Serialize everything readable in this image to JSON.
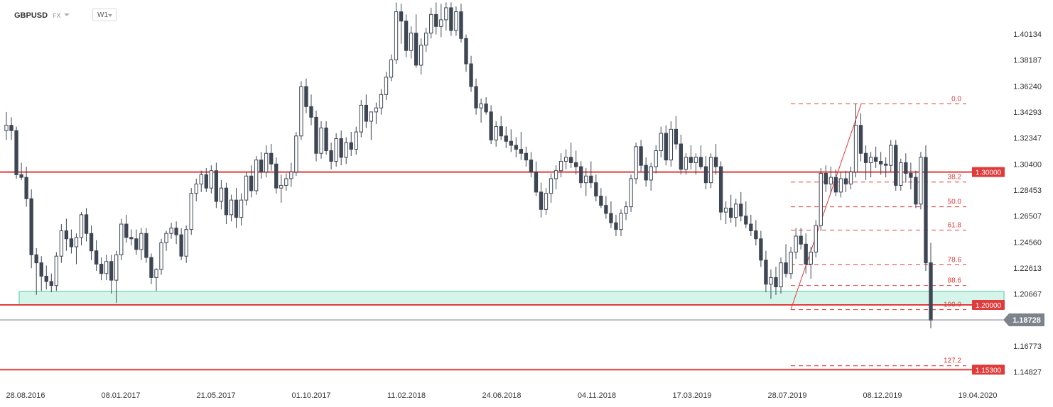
{
  "header": {
    "symbol": "GBPUSD",
    "market": "FX",
    "timeframe": "W1"
  },
  "chart_data": {
    "type": "candlestick",
    "symbol": "GBPUSD",
    "timeframe": "W1",
    "ylim": [
      1.1385,
      1.4215
    ],
    "y_ticks": [
      "1.40134",
      "1.38187",
      "1.36240",
      "1.34293",
      "1.32347",
      "1.30400",
      "1.28453",
      "1.26507",
      "1.24560",
      "1.22613",
      "1.20667",
      "1.18720",
      "1.16773",
      "1.14827"
    ],
    "x_ticks": [
      "28.08.2016",
      "08.01.2017",
      "21.05.2017",
      "01.10.2017",
      "11.02.2018",
      "24.06.2018",
      "04.11.2018",
      "17.03.2019",
      "28.07.2019",
      "08.12.2019",
      "19.04.2020"
    ],
    "current_price": "1.18728",
    "levels": [
      {
        "label": "1.30000",
        "value": 1.298,
        "color": "#e03b3b"
      },
      {
        "label": "1.20000",
        "value": 1.1985,
        "color": "#e03b3b"
      },
      {
        "label": "1.15300",
        "value": 1.15,
        "color": "#e03b3b"
      }
    ],
    "support_zone": {
      "from": 1.1985,
      "to": 1.2085,
      "color": "#7fd9b8"
    },
    "fibonacci": {
      "low": 1.195,
      "high": 1.349,
      "levels": [
        {
          "label": "0.0",
          "value": 1.349
        },
        {
          "label": "38.2",
          "value": 1.2905
        },
        {
          "label": "50.0",
          "value": 1.272
        },
        {
          "label": "61.8",
          "value": 1.2545
        },
        {
          "label": "78.6",
          "value": 1.2285
        },
        {
          "label": "88.6",
          "value": 1.213
        },
        {
          "label": "100.0",
          "value": 1.195
        },
        {
          "label": "127.2",
          "value": 1.153
        }
      ]
    },
    "candles": [
      [
        1.329,
        1.343,
        1.322,
        1.333
      ],
      [
        1.333,
        1.339,
        1.322,
        1.329
      ],
      [
        1.329,
        1.332,
        1.293,
        1.296
      ],
      [
        1.296,
        1.305,
        1.292,
        1.294
      ],
      [
        1.294,
        1.302,
        1.272,
        1.278
      ],
      [
        1.278,
        1.285,
        1.226,
        1.236
      ],
      [
        1.236,
        1.241,
        1.206,
        1.23
      ],
      [
        1.23,
        1.235,
        1.209,
        1.22
      ],
      [
        1.22,
        1.228,
        1.21,
        1.216
      ],
      [
        1.216,
        1.222,
        1.208,
        1.213
      ],
      [
        1.213,
        1.238,
        1.209,
        1.235
      ],
      [
        1.235,
        1.259,
        1.23,
        1.254
      ],
      [
        1.254,
        1.263,
        1.239,
        1.248
      ],
      [
        1.248,
        1.255,
        1.237,
        1.242
      ],
      [
        1.242,
        1.252,
        1.229,
        1.249
      ],
      [
        1.249,
        1.268,
        1.243,
        1.266
      ],
      [
        1.266,
        1.271,
        1.246,
        1.252
      ],
      [
        1.252,
        1.258,
        1.232,
        1.239
      ],
      [
        1.239,
        1.247,
        1.224,
        1.229
      ],
      [
        1.229,
        1.234,
        1.217,
        1.222
      ],
      [
        1.222,
        1.236,
        1.217,
        1.231
      ],
      [
        1.231,
        1.236,
        1.207,
        1.217
      ],
      [
        1.217,
        1.239,
        1.2,
        1.236
      ],
      [
        1.236,
        1.263,
        1.232,
        1.259
      ],
      [
        1.259,
        1.266,
        1.245,
        1.249
      ],
      [
        1.249,
        1.255,
        1.243,
        1.248
      ],
      [
        1.248,
        1.255,
        1.236,
        1.24
      ],
      [
        1.24,
        1.256,
        1.232,
        1.252
      ],
      [
        1.252,
        1.256,
        1.23,
        1.234
      ],
      [
        1.234,
        1.237,
        1.214,
        1.219
      ],
      [
        1.219,
        1.226,
        1.209,
        1.225
      ],
      [
        1.225,
        1.248,
        1.221,
        1.245
      ],
      [
        1.245,
        1.254,
        1.239,
        1.252
      ],
      [
        1.252,
        1.26,
        1.248,
        1.256
      ],
      [
        1.256,
        1.261,
        1.244,
        1.251
      ],
      [
        1.251,
        1.256,
        1.232,
        1.235
      ],
      [
        1.235,
        1.258,
        1.23,
        1.255
      ],
      [
        1.255,
        1.286,
        1.251,
        1.282
      ],
      [
        1.282,
        1.293,
        1.276,
        1.289
      ],
      [
        1.289,
        1.299,
        1.283,
        1.296
      ],
      [
        1.296,
        1.301,
        1.283,
        1.286
      ],
      [
        1.286,
        1.303,
        1.282,
        1.299
      ],
      [
        1.299,
        1.305,
        1.271,
        1.276
      ],
      [
        1.276,
        1.292,
        1.27,
        1.286
      ],
      [
        1.286,
        1.29,
        1.259,
        1.266
      ],
      [
        1.266,
        1.281,
        1.261,
        1.277
      ],
      [
        1.277,
        1.286,
        1.256,
        1.264
      ],
      [
        1.264,
        1.282,
        1.258,
        1.277
      ],
      [
        1.277,
        1.298,
        1.273,
        1.295
      ],
      [
        1.295,
        1.303,
        1.279,
        1.284
      ],
      [
        1.284,
        1.31,
        1.281,
        1.307
      ],
      [
        1.307,
        1.313,
        1.293,
        1.298
      ],
      [
        1.298,
        1.318,
        1.294,
        1.312
      ],
      [
        1.312,
        1.319,
        1.299,
        1.304
      ],
      [
        1.304,
        1.309,
        1.282,
        1.286
      ],
      [
        1.286,
        1.296,
        1.275,
        1.288
      ],
      [
        1.288,
        1.297,
        1.284,
        1.293
      ],
      [
        1.293,
        1.305,
        1.287,
        1.298
      ],
      [
        1.298,
        1.328,
        1.295,
        1.325
      ],
      [
        1.325,
        1.366,
        1.322,
        1.362
      ],
      [
        1.362,
        1.368,
        1.342,
        1.347
      ],
      [
        1.347,
        1.356,
        1.333,
        1.339
      ],
      [
        1.339,
        1.344,
        1.306,
        1.312
      ],
      [
        1.312,
        1.336,
        1.308,
        1.331
      ],
      [
        1.331,
        1.336,
        1.311,
        1.314
      ],
      [
        1.314,
        1.32,
        1.3,
        1.306
      ],
      [
        1.306,
        1.327,
        1.302,
        1.323
      ],
      [
        1.323,
        1.329,
        1.303,
        1.309
      ],
      [
        1.309,
        1.324,
        1.304,
        1.32
      ],
      [
        1.32,
        1.328,
        1.31,
        1.315
      ],
      [
        1.315,
        1.332,
        1.311,
        1.328
      ],
      [
        1.328,
        1.352,
        1.324,
        1.348
      ],
      [
        1.348,
        1.356,
        1.331,
        1.336
      ],
      [
        1.336,
        1.342,
        1.322,
        1.343
      ],
      [
        1.343,
        1.35,
        1.334,
        1.346
      ],
      [
        1.346,
        1.36,
        1.341,
        1.356
      ],
      [
        1.356,
        1.373,
        1.352,
        1.369
      ],
      [
        1.369,
        1.386,
        1.366,
        1.382
      ],
      [
        1.382,
        1.425,
        1.379,
        1.418
      ],
      [
        1.418,
        1.424,
        1.394,
        1.411
      ],
      [
        1.411,
        1.416,
        1.384,
        1.389
      ],
      [
        1.389,
        1.407,
        1.383,
        1.402
      ],
      [
        1.402,
        1.416,
        1.376,
        1.378
      ],
      [
        1.378,
        1.398,
        1.371,
        1.393
      ],
      [
        1.393,
        1.406,
        1.388,
        1.402
      ],
      [
        1.402,
        1.421,
        1.398,
        1.416
      ],
      [
        1.416,
        1.425,
        1.401,
        1.407
      ],
      [
        1.407,
        1.424,
        1.399,
        1.412
      ],
      [
        1.412,
        1.425,
        1.404,
        1.421
      ],
      [
        1.421,
        1.425,
        1.4,
        1.404
      ],
      [
        1.404,
        1.422,
        1.4,
        1.418
      ],
      [
        1.418,
        1.424,
        1.395,
        1.398
      ],
      [
        1.398,
        1.401,
        1.373,
        1.379
      ],
      [
        1.379,
        1.385,
        1.358,
        1.362
      ],
      [
        1.362,
        1.368,
        1.341,
        1.346
      ],
      [
        1.346,
        1.353,
        1.335,
        1.349
      ],
      [
        1.349,
        1.354,
        1.341,
        1.343
      ],
      [
        1.343,
        1.348,
        1.319,
        1.322
      ],
      [
        1.322,
        1.336,
        1.317,
        1.332
      ],
      [
        1.332,
        1.34,
        1.322,
        1.325
      ],
      [
        1.325,
        1.332,
        1.316,
        1.321
      ],
      [
        1.321,
        1.33,
        1.313,
        1.318
      ],
      [
        1.318,
        1.324,
        1.309,
        1.315
      ],
      [
        1.315,
        1.328,
        1.307,
        1.312
      ],
      [
        1.312,
        1.317,
        1.302,
        1.307
      ],
      [
        1.307,
        1.313,
        1.294,
        1.298
      ],
      [
        1.298,
        1.306,
        1.28,
        1.283
      ],
      [
        1.283,
        1.29,
        1.264,
        1.27
      ],
      [
        1.27,
        1.286,
        1.266,
        1.282
      ],
      [
        1.282,
        1.297,
        1.275,
        1.293
      ],
      [
        1.293,
        1.303,
        1.285,
        1.299
      ],
      [
        1.299,
        1.312,
        1.294,
        1.306
      ],
      [
        1.306,
        1.315,
        1.3,
        1.309
      ],
      [
        1.309,
        1.32,
        1.301,
        1.305
      ],
      [
        1.305,
        1.314,
        1.296,
        1.302
      ],
      [
        1.302,
        1.306,
        1.286,
        1.29
      ],
      [
        1.29,
        1.301,
        1.28,
        1.295
      ],
      [
        1.295,
        1.306,
        1.286,
        1.29
      ],
      [
        1.29,
        1.296,
        1.276,
        1.28
      ],
      [
        1.28,
        1.286,
        1.271,
        1.273
      ],
      [
        1.273,
        1.28,
        1.263,
        1.267
      ],
      [
        1.267,
        1.276,
        1.256,
        1.26
      ],
      [
        1.26,
        1.266,
        1.25,
        1.255
      ],
      [
        1.255,
        1.27,
        1.25,
        1.267
      ],
      [
        1.267,
        1.276,
        1.262,
        1.272
      ],
      [
        1.272,
        1.296,
        1.268,
        1.293
      ],
      [
        1.293,
        1.32,
        1.289,
        1.317
      ],
      [
        1.317,
        1.322,
        1.298,
        1.303
      ],
      [
        1.303,
        1.309,
        1.287,
        1.292
      ],
      [
        1.292,
        1.305,
        1.284,
        1.302
      ],
      [
        1.302,
        1.318,
        1.297,
        1.314
      ],
      [
        1.314,
        1.332,
        1.309,
        1.327
      ],
      [
        1.327,
        1.333,
        1.303,
        1.307
      ],
      [
        1.307,
        1.336,
        1.302,
        1.33
      ],
      [
        1.33,
        1.34,
        1.315,
        1.319
      ],
      [
        1.319,
        1.326,
        1.296,
        1.3
      ],
      [
        1.3,
        1.312,
        1.296,
        1.309
      ],
      [
        1.309,
        1.318,
        1.3,
        1.305
      ],
      [
        1.305,
        1.312,
        1.296,
        1.309
      ],
      [
        1.309,
        1.318,
        1.3,
        1.302
      ],
      [
        1.302,
        1.31,
        1.285,
        1.29
      ],
      [
        1.29,
        1.312,
        1.286,
        1.309
      ],
      [
        1.309,
        1.319,
        1.296,
        1.302
      ],
      [
        1.302,
        1.306,
        1.262,
        1.268
      ],
      [
        1.268,
        1.276,
        1.259,
        1.271
      ],
      [
        1.271,
        1.281,
        1.26,
        1.264
      ],
      [
        1.264,
        1.278,
        1.257,
        1.274
      ],
      [
        1.274,
        1.283,
        1.261,
        1.265
      ],
      [
        1.265,
        1.276,
        1.256,
        1.259
      ],
      [
        1.259,
        1.266,
        1.25,
        1.254
      ],
      [
        1.254,
        1.262,
        1.243,
        1.248
      ],
      [
        1.248,
        1.254,
        1.227,
        1.232
      ],
      [
        1.232,
        1.239,
        1.208,
        1.214
      ],
      [
        1.214,
        1.225,
        1.203,
        1.219
      ],
      [
        1.219,
        1.227,
        1.206,
        1.212
      ],
      [
        1.212,
        1.234,
        1.207,
        1.23
      ],
      [
        1.23,
        1.244,
        1.219,
        1.222
      ],
      [
        1.222,
        1.242,
        1.218,
        1.238
      ],
      [
        1.238,
        1.256,
        1.233,
        1.25
      ],
      [
        1.25,
        1.256,
        1.24,
        1.244
      ],
      [
        1.244,
        1.252,
        1.222,
        1.229
      ],
      [
        1.229,
        1.242,
        1.218,
        1.238
      ],
      [
        1.238,
        1.262,
        1.234,
        1.258
      ],
      [
        1.258,
        1.301,
        1.254,
        1.297
      ],
      [
        1.297,
        1.303,
        1.283,
        1.289
      ],
      [
        1.289,
        1.302,
        1.282,
        1.294
      ],
      [
        1.294,
        1.3,
        1.28,
        1.283
      ],
      [
        1.283,
        1.298,
        1.279,
        1.293
      ],
      [
        1.293,
        1.299,
        1.283,
        1.289
      ],
      [
        1.289,
        1.302,
        1.285,
        1.298
      ],
      [
        1.298,
        1.349,
        1.294,
        1.333
      ],
      [
        1.333,
        1.342,
        1.306,
        1.312
      ],
      [
        1.312,
        1.318,
        1.292,
        1.305
      ],
      [
        1.305,
        1.313,
        1.294,
        1.309
      ],
      [
        1.309,
        1.317,
        1.301,
        1.306
      ],
      [
        1.306,
        1.313,
        1.296,
        1.304
      ],
      [
        1.304,
        1.309,
        1.294,
        1.303
      ],
      [
        1.303,
        1.322,
        1.298,
        1.318
      ],
      [
        1.318,
        1.322,
        1.284,
        1.288
      ],
      [
        1.288,
        1.308,
        1.284,
        1.305
      ],
      [
        1.305,
        1.312,
        1.29,
        1.297
      ],
      [
        1.297,
        1.305,
        1.285,
        1.294
      ],
      [
        1.294,
        1.299,
        1.271,
        1.274
      ],
      [
        1.274,
        1.313,
        1.27,
        1.309
      ],
      [
        1.309,
        1.318,
        1.224,
        1.23
      ],
      [
        1.23,
        1.245,
        1.181,
        1.187
      ]
    ]
  }
}
